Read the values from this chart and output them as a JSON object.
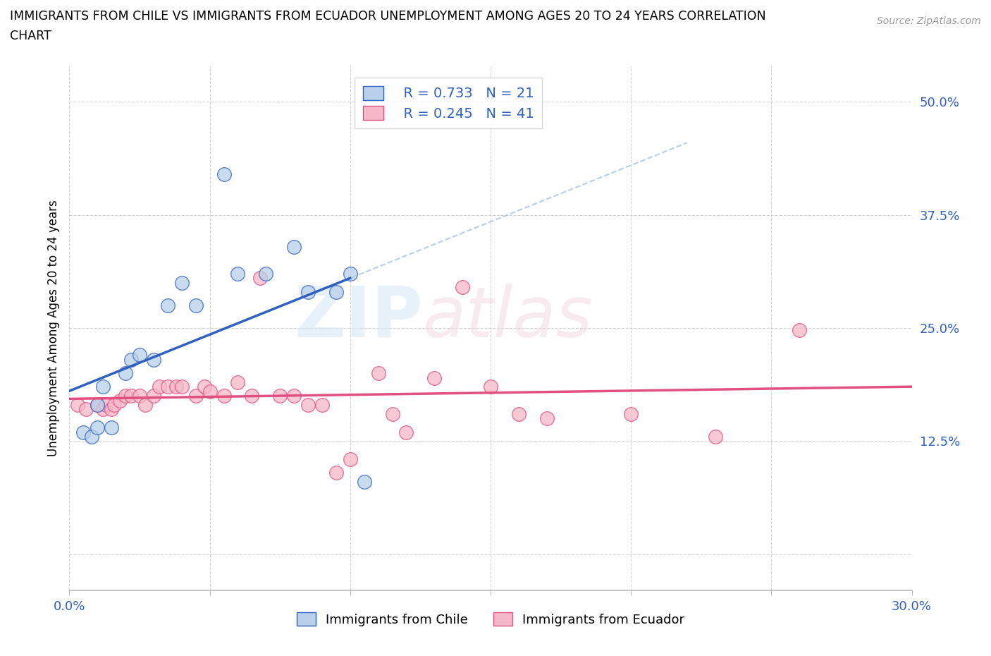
{
  "title_line1": "IMMIGRANTS FROM CHILE VS IMMIGRANTS FROM ECUADOR UNEMPLOYMENT AMONG AGES 20 TO 24 YEARS CORRELATION",
  "title_line2": "CHART",
  "source": "Source: ZipAtlas.com",
  "ylabel": "Unemployment Among Ages 20 to 24 years",
  "xlim": [
    0.0,
    0.3
  ],
  "ylim": [
    -0.04,
    0.54
  ],
  "x_ticks": [
    0.0,
    0.05,
    0.1,
    0.15,
    0.2,
    0.25,
    0.3
  ],
  "x_tick_labels": [
    "0.0%",
    "",
    "",
    "",
    "",
    "",
    "30.0%"
  ],
  "y_ticks": [
    0.0,
    0.125,
    0.25,
    0.375,
    0.5
  ],
  "y_tick_labels": [
    "",
    "12.5%",
    "25.0%",
    "37.5%",
    "50.0%"
  ],
  "background_color": "#ffffff",
  "grid_color": "#c8c8c8",
  "chile_color": "#b8d0ea",
  "ecuador_color": "#f5b8c8",
  "chile_line_color": "#3060c0",
  "ecuador_line_color": "#e05080",
  "dashed_line_color": "#b0c8e8",
  "R_chile": 0.733,
  "N_chile": 21,
  "R_ecuador": 0.245,
  "N_ecuador": 41,
  "chile_x": [
    0.005,
    0.008,
    0.01,
    0.01,
    0.012,
    0.015,
    0.02,
    0.022,
    0.025,
    0.03,
    0.035,
    0.04,
    0.045,
    0.055,
    0.06,
    0.07,
    0.08,
    0.085,
    0.095,
    0.1,
    0.105
  ],
  "chile_y": [
    0.135,
    0.13,
    0.14,
    0.165,
    0.185,
    0.14,
    0.2,
    0.215,
    0.22,
    0.215,
    0.275,
    0.3,
    0.275,
    0.42,
    0.31,
    0.31,
    0.34,
    0.29,
    0.29,
    0.31,
    0.08
  ],
  "ecuador_x": [
    0.003,
    0.006,
    0.01,
    0.012,
    0.013,
    0.015,
    0.016,
    0.018,
    0.02,
    0.022,
    0.025,
    0.027,
    0.03,
    0.032,
    0.035,
    0.038,
    0.04,
    0.045,
    0.048,
    0.05,
    0.055,
    0.06,
    0.065,
    0.068,
    0.075,
    0.08,
    0.085,
    0.09,
    0.095,
    0.1,
    0.11,
    0.115,
    0.12,
    0.13,
    0.14,
    0.15,
    0.16,
    0.17,
    0.2,
    0.23,
    0.26
  ],
  "ecuador_y": [
    0.165,
    0.16,
    0.165,
    0.16,
    0.165,
    0.16,
    0.165,
    0.17,
    0.175,
    0.175,
    0.175,
    0.165,
    0.175,
    0.185,
    0.185,
    0.185,
    0.185,
    0.175,
    0.185,
    0.18,
    0.175,
    0.19,
    0.175,
    0.305,
    0.175,
    0.175,
    0.165,
    0.165,
    0.09,
    0.105,
    0.2,
    0.155,
    0.135,
    0.195,
    0.295,
    0.185,
    0.155,
    0.15,
    0.155,
    0.13,
    0.248
  ],
  "watermark_zip": "ZIP",
  "watermark_atlas": "atlas"
}
